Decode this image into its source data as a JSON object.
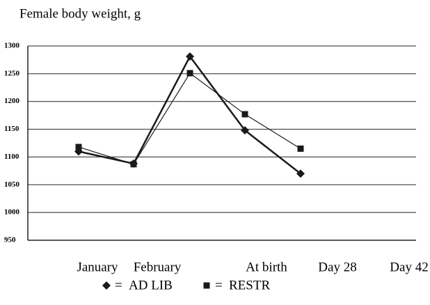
{
  "chart_data": {
    "type": "line",
    "title": "Female body weight, g",
    "categories": [
      "January",
      "February",
      "At birth",
      "Day 28",
      "Day 42"
    ],
    "legend_separator": "=",
    "series": [
      {
        "name": "AD LIB",
        "color": "#1a1a1a",
        "marker": "diamond",
        "values": [
          1110,
          1088,
          1281,
          1148,
          1070
        ]
      },
      {
        "name": "RESTR",
        "color": "#1a1a1a",
        "marker": "square",
        "values": [
          1118,
          1087,
          1251,
          1177,
          1115
        ]
      }
    ],
    "ylim": [
      950,
      1300
    ],
    "yticks": [
      950,
      1000,
      1050,
      1100,
      1150,
      1200,
      1250,
      1300
    ],
    "grid": true
  }
}
